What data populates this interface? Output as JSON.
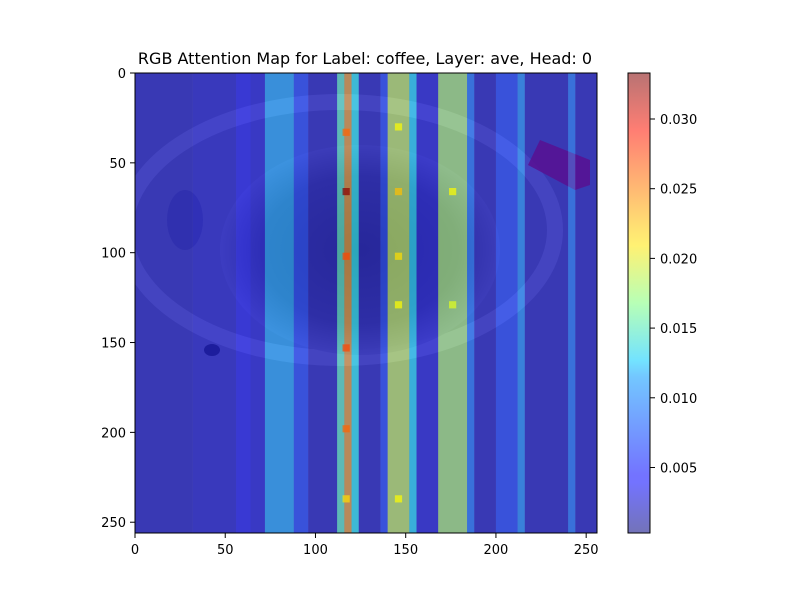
{
  "chart_data": {
    "type": "heatmap",
    "title": "RGB Attention Map for Label: coffee, Layer: ave, Head: 0",
    "xlabel": "",
    "ylabel": "",
    "xlim": [
      0,
      256
    ],
    "ylim": [
      256,
      0
    ],
    "xticks": [
      0,
      50,
      100,
      150,
      200,
      250
    ],
    "yticks": [
      0,
      50,
      100,
      150,
      200,
      250
    ],
    "colormap": "jet",
    "overlay_alpha": 0.5,
    "colorbar": {
      "range": [
        0.0003,
        0.0333
      ],
      "ticks": [
        0.005,
        0.01,
        0.015,
        0.02,
        0.025,
        0.03
      ],
      "tick_labels": [
        "0.005",
        "0.010",
        "0.015",
        "0.020",
        "0.025",
        "0.030"
      ],
      "position": "right"
    },
    "column_bands": [
      {
        "x_start": 0,
        "x_end": 32,
        "value": 0.002
      },
      {
        "x_start": 32,
        "x_end": 56,
        "value": 0.0025
      },
      {
        "x_start": 56,
        "x_end": 64,
        "value": 0.004
      },
      {
        "x_start": 64,
        "x_end": 72,
        "value": 0.003
      },
      {
        "x_start": 72,
        "x_end": 88,
        "value": 0.01
      },
      {
        "x_start": 88,
        "x_end": 96,
        "value": 0.006
      },
      {
        "x_start": 96,
        "x_end": 112,
        "value": 0.002
      },
      {
        "x_start": 112,
        "x_end": 116,
        "value": 0.015
      },
      {
        "x_start": 116,
        "x_end": 120,
        "value": 0.024
      },
      {
        "x_start": 120,
        "x_end": 124,
        "value": 0.013
      },
      {
        "x_start": 124,
        "x_end": 136,
        "value": 0.002
      },
      {
        "x_start": 136,
        "x_end": 140,
        "value": 0.006
      },
      {
        "x_start": 140,
        "x_end": 152,
        "value": 0.019
      },
      {
        "x_start": 152,
        "x_end": 156,
        "value": 0.012
      },
      {
        "x_start": 156,
        "x_end": 168,
        "value": 0.003
      },
      {
        "x_start": 168,
        "x_end": 184,
        "value": 0.018
      },
      {
        "x_start": 184,
        "x_end": 188,
        "value": 0.008
      },
      {
        "x_start": 188,
        "x_end": 200,
        "value": 0.002
      },
      {
        "x_start": 200,
        "x_end": 212,
        "value": 0.006
      },
      {
        "x_start": 212,
        "x_end": 216,
        "value": 0.009
      },
      {
        "x_start": 216,
        "x_end": 240,
        "value": 0.002
      },
      {
        "x_start": 240,
        "x_end": 244,
        "value": 0.008
      },
      {
        "x_start": 244,
        "x_end": 256,
        "value": 0.002
      }
    ],
    "hotspots": [
      {
        "x": 117,
        "y": 66,
        "value": 0.033
      },
      {
        "x": 117,
        "y": 33,
        "value": 0.026
      },
      {
        "x": 117,
        "y": 102,
        "value": 0.027
      },
      {
        "x": 117,
        "y": 153,
        "value": 0.027
      },
      {
        "x": 117,
        "y": 198,
        "value": 0.026
      },
      {
        "x": 117,
        "y": 237,
        "value": 0.022
      },
      {
        "x": 146,
        "y": 30,
        "value": 0.021
      },
      {
        "x": 146,
        "y": 66,
        "value": 0.023
      },
      {
        "x": 146,
        "y": 102,
        "value": 0.022
      },
      {
        "x": 146,
        "y": 129,
        "value": 0.021
      },
      {
        "x": 146,
        "y": 237,
        "value": 0.021
      },
      {
        "x": 176,
        "y": 66,
        "value": 0.021
      },
      {
        "x": 176,
        "y": 129,
        "value": 0.02
      }
    ]
  }
}
